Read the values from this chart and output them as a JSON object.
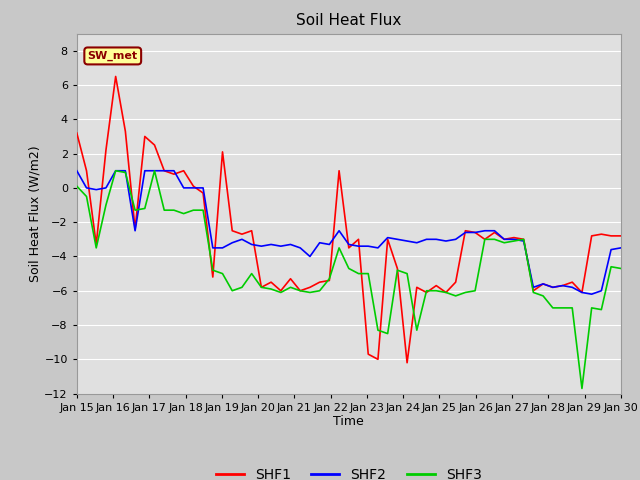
{
  "title": "Soil Heat Flux",
  "xlabel": "Time",
  "ylabel": "Soil Heat Flux (W/m2)",
  "ylim": [
    -12,
    9
  ],
  "yticks": [
    -12,
    -10,
    -8,
    -6,
    -4,
    -2,
    0,
    2,
    4,
    6,
    8
  ],
  "fig_bg_color": "#c8c8c8",
  "plot_bg_color": "#e0e0e0",
  "grid_color": "#ffffff",
  "annotation_text": "SW_met",
  "annotation_bg": "#ffff99",
  "annotation_border": "#8b0000",
  "line_colors": {
    "SHF1": "#ff0000",
    "SHF2": "#0000ff",
    "SHF3": "#00cc00"
  },
  "x_labels": [
    "Jan 15",
    "Jan 16",
    "Jan 17",
    "Jan 18",
    "Jan 19",
    "Jan 20",
    "Jan 21",
    "Jan 22",
    "Jan 23",
    "Jan 24",
    "Jan 25",
    "Jan 26",
    "Jan 27",
    "Jan 28",
    "Jan 29",
    "Jan 30"
  ],
  "SHF1": [
    3.2,
    1.0,
    -3.3,
    2.2,
    6.5,
    3.3,
    -2.4,
    3.0,
    2.5,
    1.0,
    0.8,
    1.0,
    0.1,
    -0.3,
    -5.2,
    2.1,
    -2.5,
    -2.7,
    -2.5,
    -5.8,
    -5.5,
    -6.0,
    -5.3,
    -6.0,
    -5.8,
    -5.5,
    -5.4,
    1.0,
    -3.5,
    -3.0,
    -9.7,
    -10.0,
    -3.0,
    -4.7,
    -10.2,
    -5.8,
    -6.1,
    -5.7,
    -6.1,
    -5.5,
    -2.5,
    -2.6,
    -3.0,
    -2.6,
    -3.0,
    -2.9,
    -3.0,
    -6.0,
    -5.6,
    -5.8,
    -5.7,
    -5.5,
    -6.1,
    -2.8,
    -2.7,
    -2.8,
    -2.8
  ],
  "SHF2": [
    1.0,
    0.0,
    -0.1,
    0.0,
    1.0,
    1.0,
    -2.5,
    1.0,
    1.0,
    1.0,
    1.0,
    0.0,
    0.0,
    0.0,
    -3.5,
    -3.5,
    -3.2,
    -3.0,
    -3.3,
    -3.4,
    -3.3,
    -3.4,
    -3.3,
    -3.5,
    -4.0,
    -3.2,
    -3.3,
    -2.5,
    -3.3,
    -3.4,
    -3.4,
    -3.5,
    -2.9,
    -3.0,
    -3.1,
    -3.2,
    -3.0,
    -3.0,
    -3.1,
    -3.0,
    -2.6,
    -2.6,
    -2.5,
    -2.5,
    -3.0,
    -3.0,
    -3.1,
    -5.8,
    -5.6,
    -5.8,
    -5.7,
    -5.8,
    -6.1,
    -6.2,
    -6.0,
    -3.6,
    -3.5
  ],
  "SHF3": [
    0.1,
    -0.5,
    -3.5,
    -1.0,
    1.0,
    0.9,
    -1.3,
    -1.2,
    1.0,
    -1.3,
    -1.3,
    -1.5,
    -1.3,
    -1.3,
    -4.8,
    -5.0,
    -6.0,
    -5.8,
    -5.0,
    -5.8,
    -5.9,
    -6.1,
    -5.8,
    -6.0,
    -6.1,
    -6.0,
    -5.3,
    -3.5,
    -4.7,
    -5.0,
    -5.0,
    -8.3,
    -8.5,
    -4.8,
    -5.0,
    -8.3,
    -6.0,
    -6.0,
    -6.1,
    -6.3,
    -6.1,
    -6.0,
    -3.0,
    -3.0,
    -3.2,
    -3.1,
    -3.0,
    -6.1,
    -6.3,
    -7.0,
    -7.0,
    -7.0,
    -11.7,
    -7.0,
    -7.1,
    -4.6,
    -4.7
  ]
}
